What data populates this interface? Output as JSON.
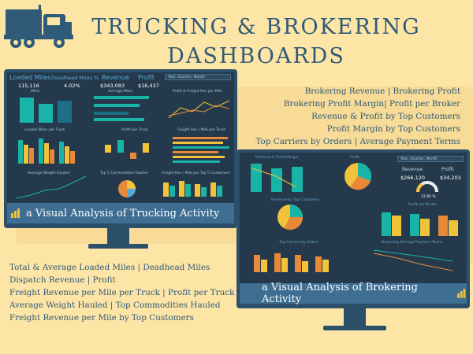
{
  "title": {
    "line1": "TRUCKING & BROKERING",
    "line2": "DASHBOARDS"
  },
  "colors": {
    "background": "#fde5a6",
    "title": "#2f5a78",
    "monitor": "#2c4f6a",
    "screen": "#243a4c",
    "caption": "#3f6e93",
    "accent_teal": "#18b4a8",
    "accent_yellow": "#f2c23a",
    "accent_orange": "#e8893a"
  },
  "icons": {
    "truck": "truck-icon",
    "powerbi": "power-bi-icon"
  },
  "trucking_dashboard": {
    "kpis": [
      {
        "label": "Loaded Miles",
        "value": "115,116"
      },
      {
        "label": "Deadhead Miles %",
        "value": "4.02%"
      },
      {
        "label": "Revenue",
        "value": "$343,083"
      },
      {
        "label": "Profit",
        "value": "$16,437"
      }
    ],
    "dropdown": "Year, Quarter, Month",
    "panels": [
      "Miles",
      "Average Miles",
      "Profit & Freight Rev per Mile",
      "Loaded Miles per Truck",
      "Profit per Truck",
      "Freight Rev / Mile per Truck",
      "Average Weight Hauled",
      "Top 5 Commodities Hauled",
      "Freight Rev / Mile per Top 5 Customers"
    ],
    "caption": "a Visual Analysis of Trucking Activity"
  },
  "brokering_dashboard": {
    "panels": [
      "Revenue & Profit Margin",
      "Profit",
      "Revenue by Top Customers",
      "Profit per Broker",
      "Top Carriers by Orders",
      "Brokering Average Payment Terms"
    ],
    "dropdown": "Year, Quarter, Month",
    "kpis": [
      {
        "label": "Revenue",
        "value": "$266,120"
      },
      {
        "label": "Profit",
        "value": "$34,203"
      }
    ],
    "gauge_value": "12.85 %",
    "caption": "a Visual Analysis of Brokering Activity"
  },
  "brokering_features": [
    "Brokering Revenue | Brokering Profit",
    "Brokering Profit Margin| Profit per Broker",
    "Revenue & Profit by Top Customers",
    "Profit Margin by Top Customers",
    "Top Carriers by Orders | Average Payment Terms"
  ],
  "trucking_features": [
    "Total & Average Loaded Miles | Deadhead Miles",
    "Dispatch Revenue | Profit",
    "Freight Revenue per Mile per Truck | Profit per Truck",
    "Average Weight Hauled | Top Commodities Hauled",
    "Freight Revenue per Mile by Top Customers"
  ]
}
